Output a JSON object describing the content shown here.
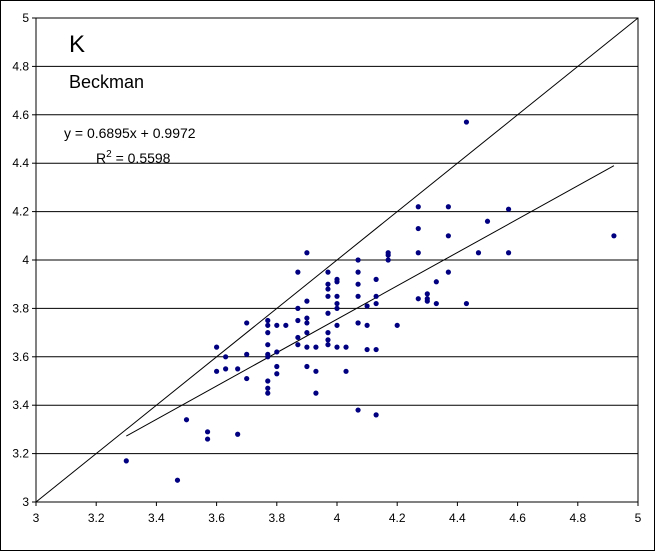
{
  "chart_data": {
    "type": "scatter",
    "title": "K",
    "subtitle": "Beckman",
    "xlabel": "",
    "ylabel": "",
    "xlim": [
      3,
      5
    ],
    "ylim": [
      3,
      5
    ],
    "xticks": [
      "3",
      "3.2",
      "3.4",
      "3.6",
      "3.8",
      "4",
      "4.2",
      "4.4",
      "4.6",
      "4.8",
      "5"
    ],
    "yticks": [
      "3",
      "3.2",
      "3.4",
      "3.6",
      "3.8",
      "4",
      "4.2",
      "4.4",
      "4.6",
      "4.8",
      "5"
    ],
    "grid": "horizontal",
    "legend": "none",
    "marker_color": "#000080",
    "line_color": "#000000",
    "annotations": {
      "equation": "y = 0.6895x + 0.9972",
      "r2_prefix": "R",
      "r2_sup": "2",
      "r2_suffix": " = 0.5598"
    },
    "trendline": {
      "slope": 0.6895,
      "intercept": 0.9972,
      "x_range": [
        3.3,
        4.92
      ]
    },
    "identity_line": {
      "from": [
        3,
        3
      ],
      "to": [
        5,
        5
      ]
    },
    "series": [
      {
        "x": [
          3.3,
          3.47,
          3.5,
          3.57,
          3.57,
          3.6,
          3.6,
          3.63,
          3.63,
          3.67,
          3.67,
          3.7,
          3.7,
          3.7,
          3.77,
          3.77,
          3.77,
          3.77,
          3.77,
          3.77,
          3.77,
          3.77,
          3.77,
          3.8,
          3.8,
          3.8,
          3.8,
          3.83,
          3.87,
          3.87,
          3.87,
          3.87,
          3.87,
          3.9,
          3.9,
          3.9,
          3.9,
          3.9,
          3.9,
          3.9,
          3.93,
          3.93,
          3.93,
          3.97,
          3.97,
          3.97,
          3.97,
          3.97,
          3.97,
          3.97,
          3.97,
          4.0,
          4.0,
          4.0,
          4.0,
          4.0,
          4.0,
          4.0,
          4.03,
          4.03,
          4.07,
          4.07,
          4.07,
          4.07,
          4.07,
          4.07,
          4.07,
          4.1,
          4.1,
          4.1,
          4.13,
          4.13,
          4.13,
          4.13,
          4.13,
          4.17,
          4.17,
          4.17,
          4.2,
          4.27,
          4.27,
          4.27,
          4.27,
          4.3,
          4.3,
          4.3,
          4.33,
          4.33,
          4.37,
          4.37,
          4.37,
          4.43,
          4.43,
          4.47,
          4.5,
          4.57,
          4.57,
          4.92
        ],
        "y": [
          3.17,
          3.09,
          3.34,
          3.26,
          3.29,
          3.54,
          3.64,
          3.55,
          3.6,
          3.28,
          3.55,
          3.51,
          3.61,
          3.74,
          3.45,
          3.47,
          3.5,
          3.6,
          3.65,
          3.7,
          3.73,
          3.75,
          3.61,
          3.53,
          3.56,
          3.62,
          3.73,
          3.73,
          3.65,
          3.68,
          3.75,
          3.8,
          3.95,
          3.56,
          3.64,
          3.7,
          3.74,
          3.76,
          3.83,
          4.03,
          3.45,
          3.54,
          3.64,
          3.65,
          3.67,
          3.7,
          3.78,
          3.85,
          3.88,
          3.9,
          3.95,
          3.64,
          3.73,
          3.8,
          3.82,
          3.85,
          3.91,
          3.92,
          3.54,
          3.64,
          3.38,
          3.74,
          3.85,
          3.9,
          3.95,
          4.0,
          3.74,
          3.63,
          3.73,
          3.81,
          3.36,
          3.63,
          3.82,
          3.85,
          3.92,
          4.0,
          4.02,
          4.03,
          3.73,
          3.84,
          4.03,
          4.13,
          4.22,
          3.83,
          3.84,
          3.86,
          3.82,
          3.91,
          3.95,
          4.1,
          4.22,
          3.82,
          4.57,
          4.03,
          4.16,
          4.03,
          4.21,
          4.1
        ]
      }
    ]
  }
}
